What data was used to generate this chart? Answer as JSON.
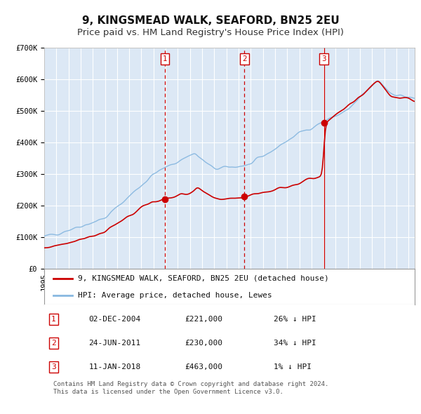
{
  "title": "9, KINGSMEAD WALK, SEAFORD, BN25 2EU",
  "subtitle": "Price paid vs. HM Land Registry's House Price Index (HPI)",
  "ylim": [
    0,
    700000
  ],
  "yticks": [
    0,
    100000,
    200000,
    300000,
    400000,
    500000,
    600000,
    700000
  ],
  "ytick_labels": [
    "£0",
    "£100K",
    "£200K",
    "£300K",
    "£400K",
    "£500K",
    "£600K",
    "£700K"
  ],
  "xlim_start": 1995.0,
  "xlim_end": 2025.5,
  "background_color": "#ffffff",
  "plot_bg_color": "#dce8f5",
  "grid_color": "#ffffff",
  "hpi_line_color": "#88b8e0",
  "price_line_color": "#cc0000",
  "sale_marker_color": "#cc0000",
  "vline_color": "#cc0000",
  "legend_label_price": "9, KINGSMEAD WALK, SEAFORD, BN25 2EU (detached house)",
  "legend_label_hpi": "HPI: Average price, detached house, Lewes",
  "sale_dates": [
    2004.92,
    2011.48,
    2018.03
  ],
  "sale_prices": [
    221000,
    230000,
    463000
  ],
  "sale_labels": [
    "1",
    "2",
    "3"
  ],
  "vline_styles": [
    "dashed",
    "dashed",
    "solid"
  ],
  "table_rows": [
    {
      "label": "1",
      "date": "02-DEC-2004",
      "price": "£221,000",
      "hpi": "26% ↓ HPI"
    },
    {
      "label": "2",
      "date": "24-JUN-2011",
      "price": "£230,000",
      "hpi": "34% ↓ HPI"
    },
    {
      "label": "3",
      "date": "11-JAN-2018",
      "price": "£463,000",
      "hpi": "1% ↓ HPI"
    }
  ],
  "footer": "Contains HM Land Registry data © Crown copyright and database right 2024.\nThis data is licensed under the Open Government Licence v3.0.",
  "title_fontsize": 11,
  "subtitle_fontsize": 9.5,
  "tick_fontsize": 7.5,
  "legend_fontsize": 8,
  "table_fontsize": 8,
  "footer_fontsize": 6.5
}
